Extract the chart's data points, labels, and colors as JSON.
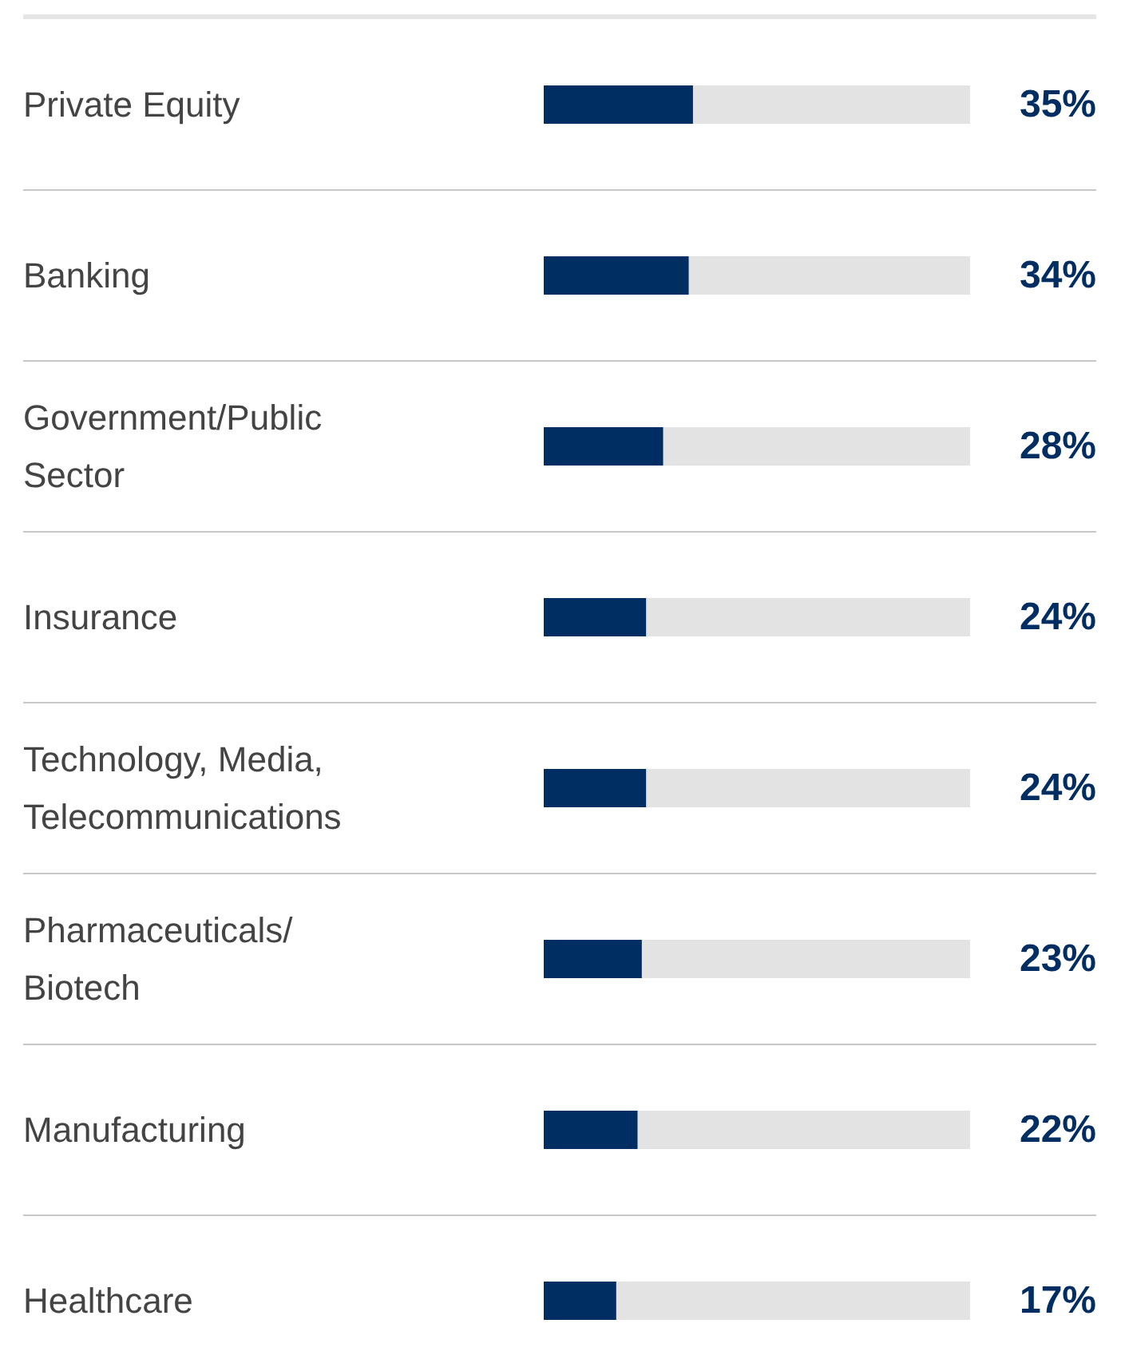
{
  "chart_data": {
    "type": "bar",
    "orientation": "horizontal",
    "categories": [
      "Private Equity",
      "Banking",
      "Government/Public Sector",
      "Insurance",
      "Technology, Media, Telecommunications",
      "Pharmaceuticals/Biotech",
      "Manufacturing",
      "Healthcare"
    ],
    "values": [
      35,
      34,
      28,
      24,
      24,
      23,
      22,
      17
    ],
    "color": "#002d62",
    "xlim": [
      0,
      100
    ],
    "tick_labels": false,
    "grid": false,
    "value_labels": [
      "35%",
      "34%",
      "28%",
      "24%",
      "24%",
      "23%",
      "22%",
      "17%"
    ]
  }
}
